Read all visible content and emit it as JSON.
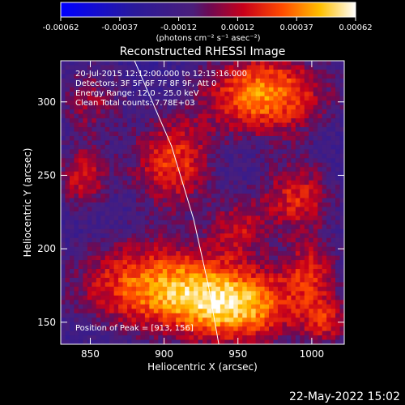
{
  "colorbar": {
    "ticks": [
      "-0.00062",
      "-0.00037",
      "-0.00012",
      "0.00012",
      "0.00037",
      "0.00062"
    ],
    "unit_label": "(photons cm⁻² s⁻¹ asec⁻²)"
  },
  "chart_data": {
    "type": "heatmap",
    "title": "Reconstructed RHESSI Image",
    "xlabel": "Heliocentric X (arcsec)",
    "ylabel": "Heliocentric Y (arcsec)",
    "xlim": [
      830,
      1022
    ],
    "ylim": [
      135,
      328
    ],
    "xticks": [
      850,
      900,
      950,
      1000
    ],
    "yticks": [
      150,
      200,
      250,
      300
    ],
    "zlim": [
      -0.00062,
      0.00062
    ],
    "annotations": [
      "20-Jul-2015 12:12:00.000 to 12:15:16.000",
      "Detectors: 3F 5F 6F 7F 8F 9F, Att 0",
      "Energy Range: 12.0 - 25.0 keV",
      "Clean     Total counts: 7.78E+03"
    ],
    "peak_label": "Position of Peak = [913, 156]",
    "limb": [
      [
        880,
        328
      ],
      [
        905,
        270
      ],
      [
        920,
        220
      ],
      [
        930,
        175
      ],
      [
        937,
        135
      ]
    ],
    "sources": [
      {
        "x": 968,
        "y": 305,
        "peak": 0.00062,
        "sx": 30,
        "sy": 20
      },
      {
        "x": 895,
        "y": 175,
        "peak": 0.00058,
        "sx": 40,
        "sy": 22
      },
      {
        "x": 950,
        "y": 160,
        "peak": 0.0006,
        "sx": 30,
        "sy": 18
      },
      {
        "x": 905,
        "y": 258,
        "peak": 0.00048,
        "sx": 20,
        "sy": 22
      },
      {
        "x": 845,
        "y": 248,
        "peak": 0.0004,
        "sx": 12,
        "sy": 14
      },
      {
        "x": 990,
        "y": 235,
        "peak": 0.00042,
        "sx": 18,
        "sy": 18
      },
      {
        "x": 1000,
        "y": 185,
        "peak": 0.00035,
        "sx": 14,
        "sy": 16
      },
      {
        "x": 1010,
        "y": 150,
        "peak": 0.00035,
        "sx": 12,
        "sy": 12
      },
      {
        "x": 950,
        "y": 215,
        "peak": 0.0003,
        "sx": 14,
        "sy": 14
      },
      {
        "x": 850,
        "y": 300,
        "peak": 0.00028,
        "sx": 16,
        "sy": 20
      }
    ],
    "background_level": -0.00022
  },
  "footer": {
    "timestamp": "22-May-2022 15:02"
  }
}
